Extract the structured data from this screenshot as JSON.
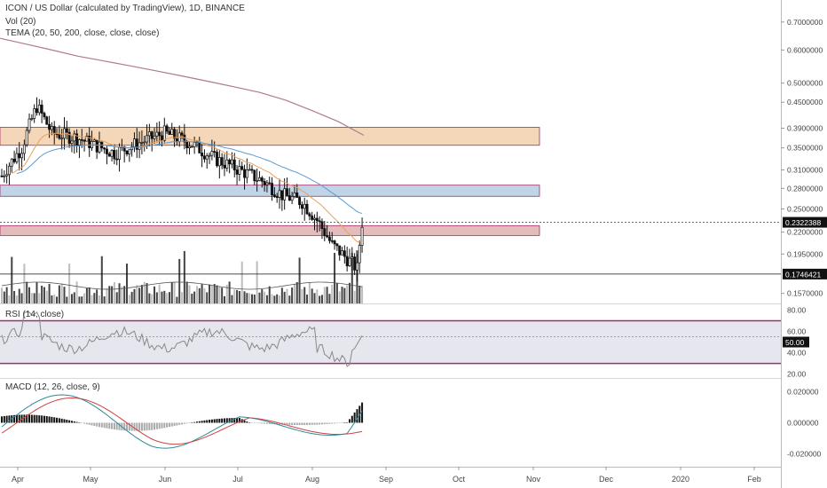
{
  "header": {
    "title": "ICON / US Dollar (calculated by TradingView), 1D, BINANCE",
    "vol_label": "Vol (20)",
    "tema_label": "TEMA (20, 50, 200, close, close, close)",
    "rsi_label": "RSI (14, close)",
    "macd_label": "MACD (12, 26, close, 9)"
  },
  "chart_data": [
    {
      "type": "candlestick",
      "name": "ICON / US Dollar price panel",
      "x_ticks": [
        "Apr",
        "May",
        "Jun",
        "Jul",
        "Aug",
        "Sep",
        "Oct",
        "Nov",
        "Dec",
        "2020",
        "Feb"
      ],
      "y_scale": "log",
      "y_ticks": [
        "0.7000000",
        "0.6000000",
        "0.5000000",
        "0.4500000",
        "0.3900000",
        "0.3500000",
        "0.3100000",
        "0.2800000",
        "0.2500000",
        "0.2200000",
        "0.1950000",
        "0.1570000"
      ],
      "ylim": [
        0.15,
        0.76
      ],
      "last_price_label": "0.2322388",
      "support_price_label": "0.1746421",
      "last_price": 0.2322388,
      "support_price": 0.1746421,
      "zones": [
        {
          "low": 0.355,
          "high": 0.392,
          "color": "#f0c9a2"
        },
        {
          "low": 0.268,
          "high": 0.285,
          "color": "#a9c6dd"
        },
        {
          "low": 0.216,
          "high": 0.228,
          "color": "#dba5a5"
        }
      ],
      "tema_200": [
        0.64,
        0.62,
        0.6,
        0.58,
        0.565,
        0.55,
        0.535,
        0.52,
        0.505,
        0.49,
        0.475,
        0.455,
        0.43,
        0.405,
        0.375
      ],
      "ma_fast_color": "#e8a060",
      "ma_mid_color": "#5b9bd5",
      "ma_slow_color": "#b07a8a",
      "volume_color": "#555555"
    },
    {
      "type": "line",
      "name": "RSI",
      "y_ticks": [
        "80.00",
        "60.00",
        "50.00",
        "40.00",
        "20.00"
      ],
      "ylim": [
        18,
        82
      ],
      "band": [
        30,
        70
      ],
      "current_label": "50.00",
      "line_color": "#888888",
      "band_color": "#a0306a"
    },
    {
      "type": "line",
      "name": "MACD",
      "y_ticks": [
        "0.020000",
        "0.000000",
        "-0.020000"
      ],
      "ylim": [
        -0.026,
        0.026
      ],
      "macd_color": "#2a8a9a",
      "signal_color": "#d04040"
    }
  ]
}
